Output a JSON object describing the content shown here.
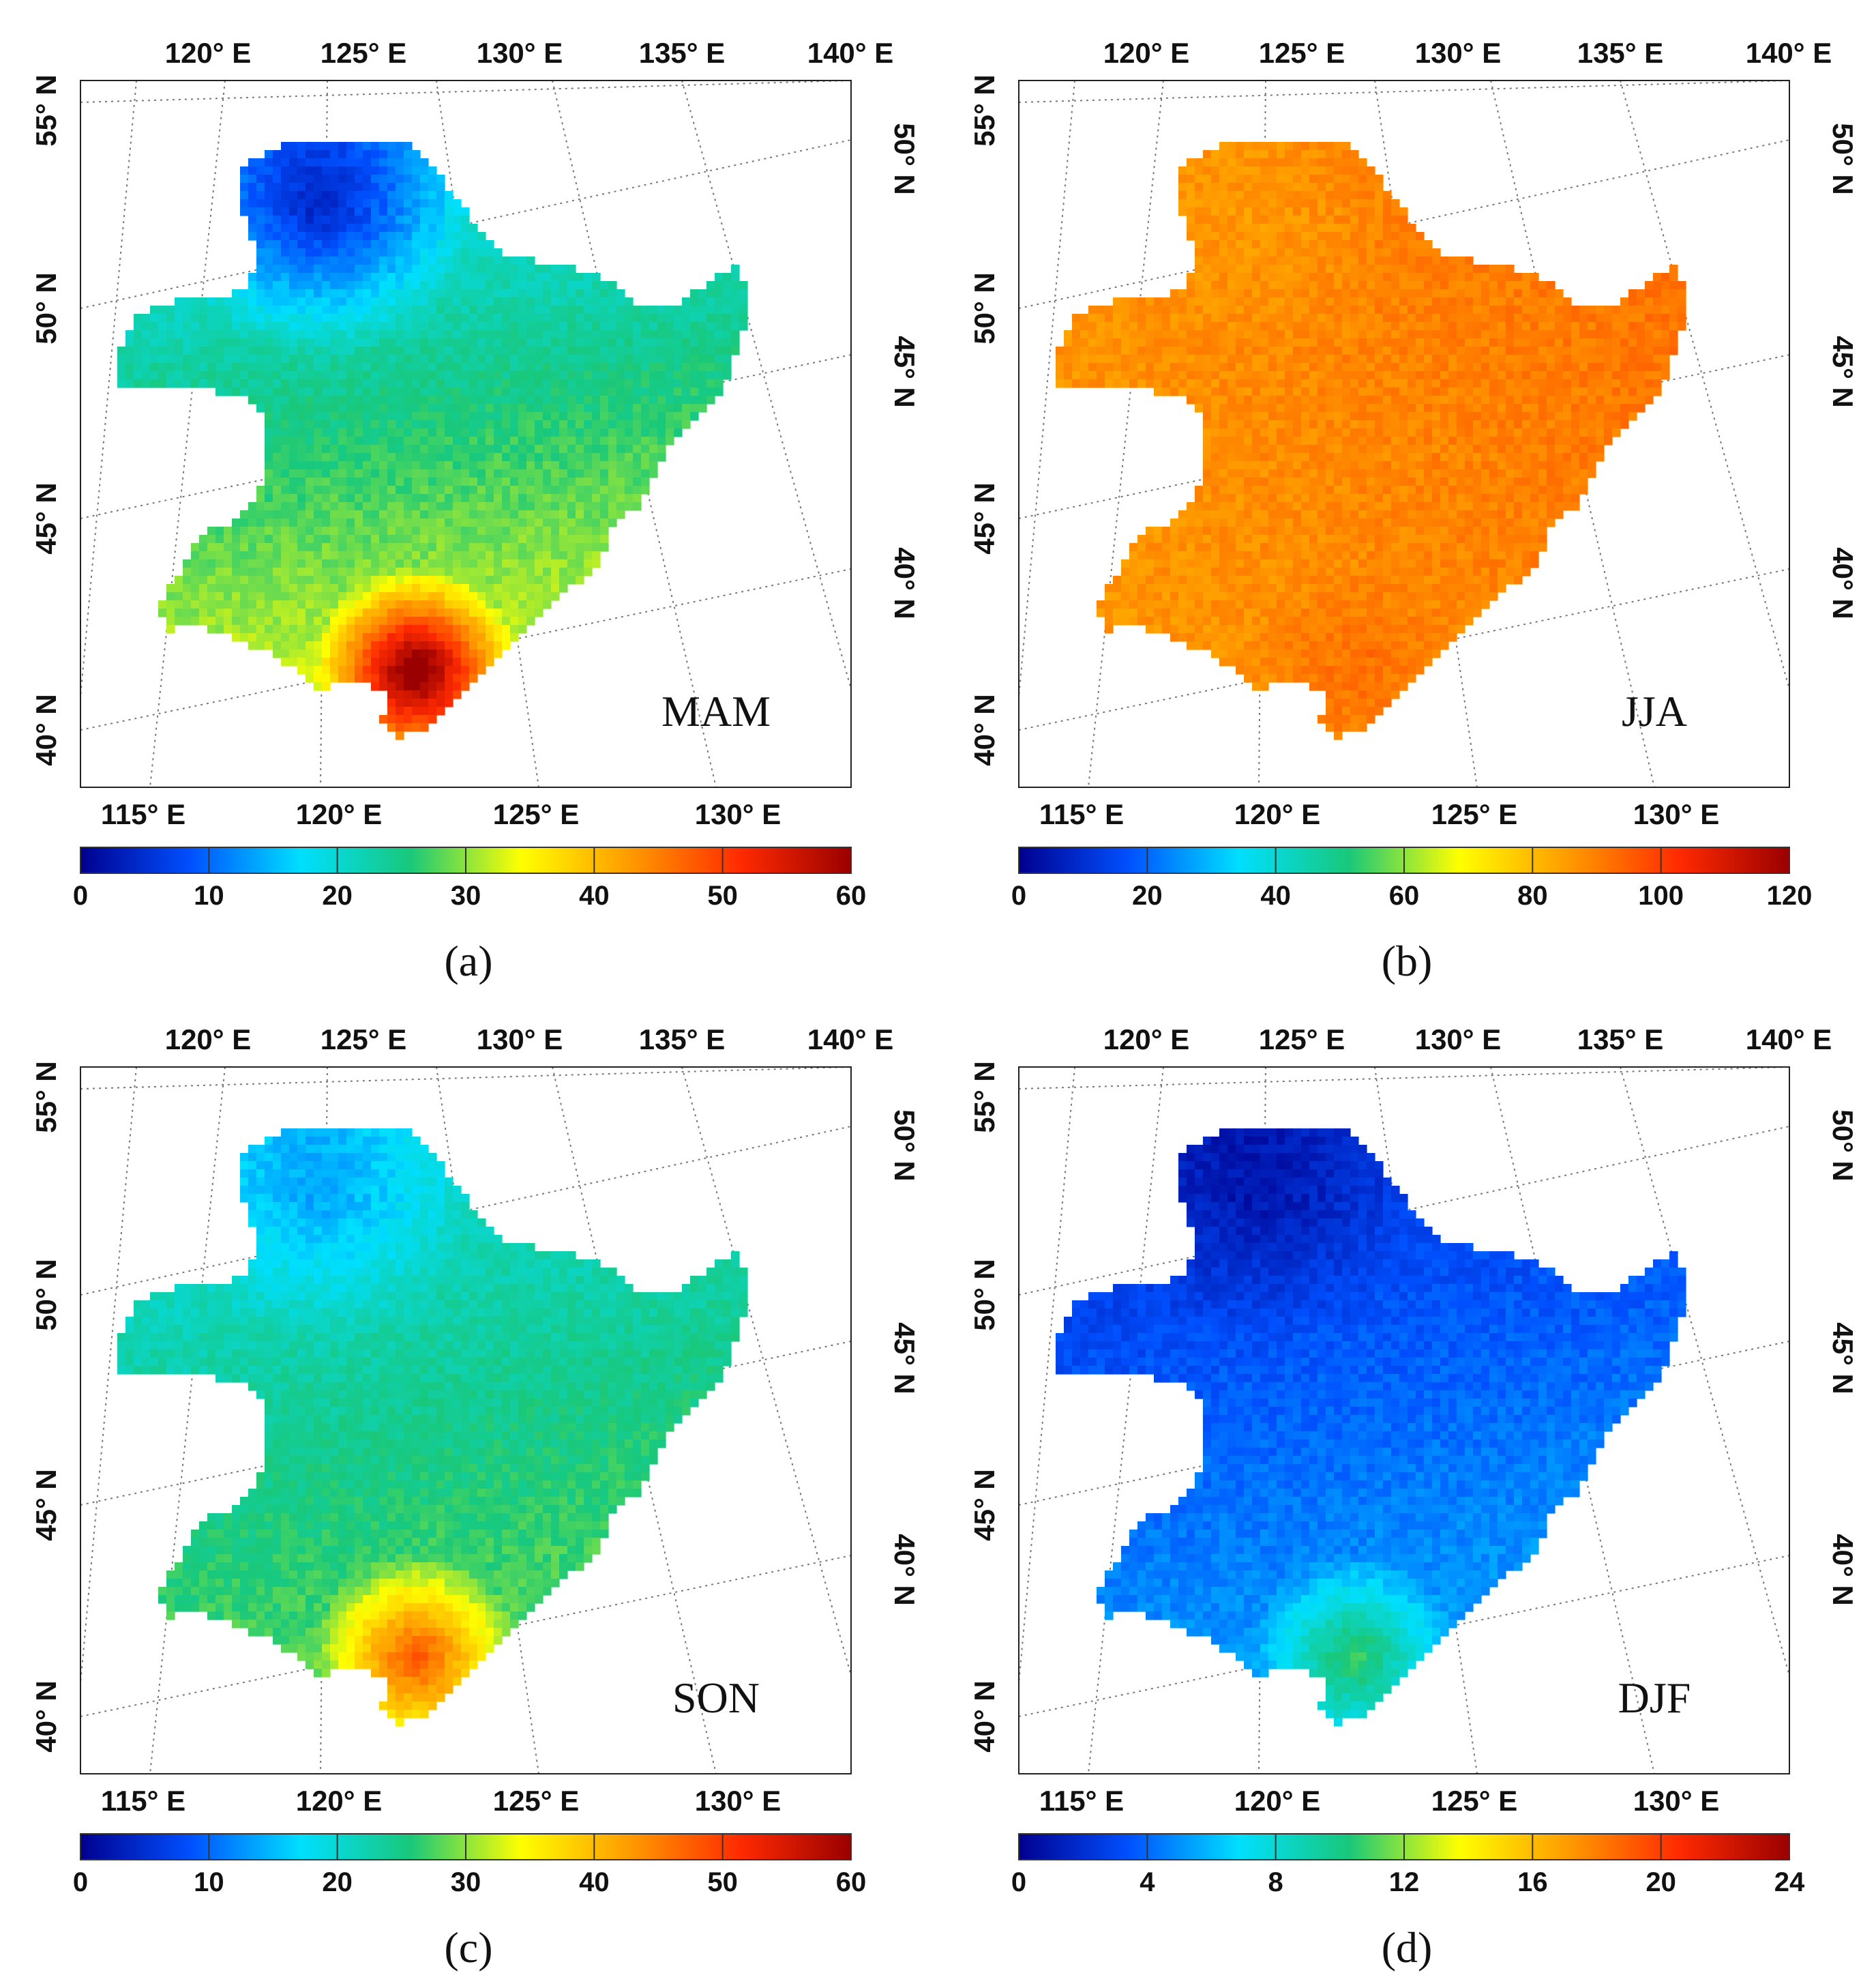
{
  "figure": {
    "panels": [
      {
        "season": "MAM",
        "letter": "(a)",
        "top_lon_labels": [
          "120° E",
          "125° E",
          "130° E",
          "135° E",
          "140° E"
        ],
        "bottom_lon_labels": [
          "115° E",
          "120° E",
          "125° E",
          "130° E"
        ],
        "left_lat_labels": [
          "55° N",
          "50° N",
          "45° N",
          "40° N"
        ],
        "right_lat_labels": [
          "50° N",
          "45° N",
          "40° N"
        ],
        "colorbar_ticks": [
          "0",
          "10",
          "20",
          "30",
          "40",
          "50",
          "60"
        ],
        "colorbar_range": [
          0,
          60
        ],
        "field": {
          "base": 0.42,
          "north_low": 0.2,
          "south_high": 0.55,
          "hotspot": 0.95
        }
      },
      {
        "season": "JJA",
        "letter": "(b)",
        "top_lon_labels": [
          "120° E",
          "125° E",
          "130° E",
          "135° E",
          "140° E"
        ],
        "bottom_lon_labels": [
          "115° E",
          "120° E",
          "125° E",
          "130° E"
        ],
        "left_lat_labels": [
          "55° N",
          "50° N",
          "45° N",
          "40° N"
        ],
        "right_lat_labels": [
          "50° N",
          "45° N",
          "40° N"
        ],
        "colorbar_ticks": [
          "0",
          "20",
          "40",
          "60",
          "80",
          "100",
          "120"
        ],
        "colorbar_range": [
          0,
          120
        ],
        "field": {
          "base": 0.74,
          "north_low": 0.72,
          "south_high": 0.7,
          "hotspot": 0.78
        }
      },
      {
        "season": "SON",
        "letter": "(c)",
        "top_lon_labels": [
          "120° E",
          "125° E",
          "130° E",
          "135° E",
          "140° E"
        ],
        "bottom_lon_labels": [
          "115° E",
          "120° E",
          "125° E",
          "130° E"
        ],
        "left_lat_labels": [
          "55° N",
          "50° N",
          "45° N",
          "40° N"
        ],
        "right_lat_labels": [
          "50° N",
          "45° N",
          "40° N"
        ],
        "colorbar_ticks": [
          "0",
          "10",
          "20",
          "30",
          "40",
          "50",
          "60"
        ],
        "colorbar_range": [
          0,
          60
        ],
        "field": {
          "base": 0.4,
          "north_low": 0.3,
          "south_high": 0.5,
          "hotspot": 0.75
        }
      },
      {
        "season": "DJF",
        "letter": "(d)",
        "top_lon_labels": [
          "120° E",
          "125° E",
          "130° E",
          "135° E",
          "140° E"
        ],
        "bottom_lon_labels": [
          "115° E",
          "120° E",
          "125° E",
          "130° E"
        ],
        "left_lat_labels": [
          "55° N",
          "50° N",
          "45° N",
          "40° N"
        ],
        "right_lat_labels": [
          "50° N",
          "45° N",
          "40° N"
        ],
        "colorbar_ticks": [
          "0",
          "4",
          "8",
          "12",
          "16",
          "20",
          "24"
        ],
        "colorbar_range": [
          0,
          24
        ],
        "field": {
          "base": 0.16,
          "north_low": 0.1,
          "south_high": 0.28,
          "hotspot": 0.4
        }
      }
    ],
    "colormap": [
      "#00008f",
      "#0050ff",
      "#00dfff",
      "#19c87a",
      "#ffff00",
      "#ff9a00",
      "#ff2a00",
      "#9a0000"
    ]
  }
}
